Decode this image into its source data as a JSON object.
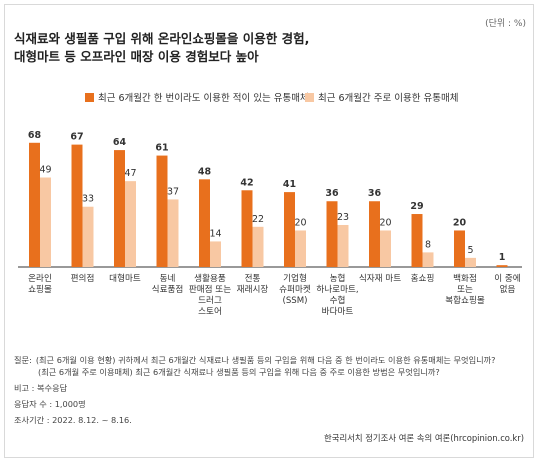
{
  "unit_label": "(단위 : %)",
  "title_line1": "식재료와 생필품 구입 위해 온라인쇼핑몰을 이용한 경험,",
  "title_line2": "대형마트 등 오프라인 매장 이용 경험보다 높아",
  "colors": {
    "primary": "#e8701d",
    "secondary": "#f8c8a3",
    "baseline": "#333333"
  },
  "chart_data": {
    "type": "bar",
    "ylim": [
      0,
      75
    ],
    "categories": [
      [
        "온라인",
        "쇼핑몰"
      ],
      [
        "편의점"
      ],
      [
        "대형마트"
      ],
      [
        "동네",
        "식료품점"
      ],
      [
        "생활용품",
        "판매점 또는",
        "드러그",
        "스토어"
      ],
      [
        "전통",
        "재래시장"
      ],
      [
        "기업형",
        "슈퍼마켓",
        "(SSM)"
      ],
      [
        "농협",
        "하나로마트,",
        "수협",
        "바다마트"
      ],
      [
        "식자재 마트"
      ],
      [
        "홈쇼핑"
      ],
      [
        "백화점",
        "또는",
        "복합쇼핑몰"
      ],
      [
        "이 중에",
        "없음"
      ]
    ],
    "series": [
      {
        "name": "최근 6개월간 한 번이라도 이용한 적이 있는 유통매체",
        "values": [
          68,
          67,
          64,
          61,
          48,
          42,
          41,
          36,
          36,
          29,
          20,
          1
        ]
      },
      {
        "name": "최근 6개월간 주로 이용한 유통매체",
        "values": [
          49,
          33,
          47,
          37,
          14,
          22,
          20,
          23,
          20,
          8,
          5,
          null
        ]
      }
    ]
  },
  "notes": {
    "q_label": "질문:",
    "q1": "(최근 6개월 이용 현황) 귀하께서 최근 6개월간 식재료나 생필품 등의 구입을 위해 다음 중 한 번이라도 이용한 유통매체는 무엇입니까?",
    "q2": "(최근 6개월 주로 이용매체) 최근 6개월간 식재료나 생필품 등의 구입을 위해 다음 중 주로 이용한 방법은 무엇입니까?",
    "remark": "비고 : 복수응답",
    "respondents": "응답자 수 : 1,000명",
    "period": "조사기간 : 2022. 8.12. ~ 8.16."
  },
  "source": "한국리서치 정기조사 여론 속의 여론(hrcopinion.co.kr)"
}
